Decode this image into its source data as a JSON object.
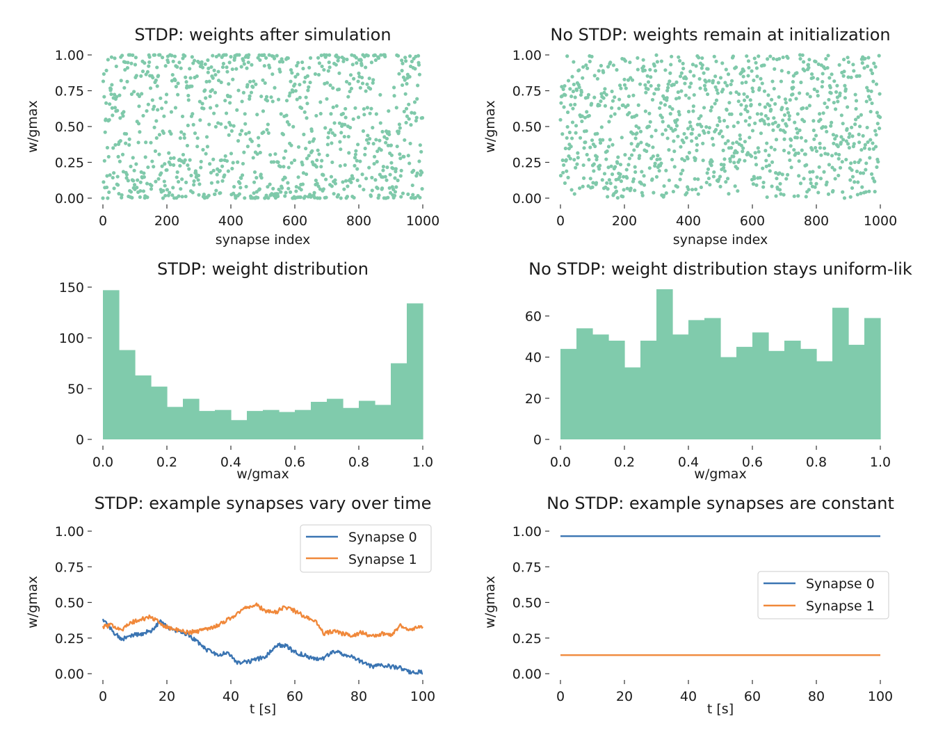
{
  "colors": {
    "scatter": "#7fc9aa",
    "hist": "#80cbac",
    "synapse0": "#3a74b2",
    "synapse1": "#f0883a"
  },
  "chart_data": [
    {
      "id": "stdp-scatter",
      "type": "scatter",
      "title": "STDP: weights after simulation",
      "xlabel": "synapse index",
      "ylabel": "w/gmax",
      "xlim": [
        0,
        1000
      ],
      "ylim": [
        0,
        1
      ],
      "xticks": [
        "0",
        "200",
        "400",
        "600",
        "800",
        "1000"
      ],
      "yticks": [
        "0.00",
        "0.25",
        "0.50",
        "0.75",
        "1.00"
      ],
      "n_points": 1000,
      "distribution": "bimodal (concentrated near 0 and 1)",
      "grid": false
    },
    {
      "id": "nostdp-scatter",
      "type": "scatter",
      "title": "No STDP: weights remain at initialization",
      "xlabel": "synapse index",
      "ylabel": "w/gmax",
      "xlim": [
        0,
        1000
      ],
      "ylim": [
        0,
        1
      ],
      "xticks": [
        "0",
        "200",
        "400",
        "600",
        "800",
        "1000"
      ],
      "yticks": [
        "0.00",
        "0.25",
        "0.50",
        "0.75",
        "1.00"
      ],
      "n_points": 1000,
      "distribution": "uniform",
      "grid": false
    },
    {
      "id": "stdp-hist",
      "type": "bar",
      "title": "STDP: weight distribution",
      "xlabel": "w/gmax",
      "ylabel": "",
      "xlim": [
        0,
        1
      ],
      "ylim": [
        0,
        150
      ],
      "xticks": [
        "0.0",
        "0.2",
        "0.4",
        "0.6",
        "0.8",
        "1.0"
      ],
      "yticks": [
        "0",
        "50",
        "100",
        "150"
      ],
      "bin_edges_start": 0,
      "bin_width": 0.05,
      "values": [
        147,
        88,
        63,
        52,
        32,
        40,
        28,
        29,
        19,
        28,
        29,
        27,
        29,
        37,
        40,
        31,
        38,
        34,
        75,
        134
      ]
    },
    {
      "id": "nostdp-hist",
      "type": "bar",
      "title": "No STDP: weight distribution stays uniform-lik",
      "xlabel": "w/gmax",
      "ylabel": "",
      "xlim": [
        0,
        1
      ],
      "ylim": [
        0,
        72
      ],
      "xticks": [
        "0.0",
        "0.2",
        "0.4",
        "0.6",
        "0.8",
        "1.0"
      ],
      "yticks": [
        "0",
        "20",
        "40",
        "60"
      ],
      "bin_edges_start": 0,
      "bin_width": 0.05,
      "values": [
        44,
        54,
        51,
        48,
        35,
        48,
        73,
        51,
        58,
        59,
        40,
        45,
        52,
        43,
        48,
        44,
        38,
        64,
        46,
        59
      ]
    },
    {
      "id": "stdp-traces",
      "type": "line",
      "title": "STDP: example synapses vary over time",
      "xlabel": "t [s]",
      "ylabel": "w/gmax",
      "xlim": [
        0,
        100
      ],
      "ylim": [
        0,
        1
      ],
      "xticks": [
        "0",
        "20",
        "40",
        "60",
        "80",
        "100"
      ],
      "yticks": [
        "0.00",
        "0.25",
        "0.50",
        "0.75",
        "1.00"
      ],
      "legend_position": "upper-right",
      "series": [
        {
          "name": "Synapse 0",
          "x": [
            0,
            3,
            6,
            9,
            12,
            15,
            18,
            21,
            24,
            27,
            30,
            33,
            36,
            39,
            42,
            45,
            48,
            51,
            54,
            57,
            60,
            63,
            66,
            69,
            72,
            75,
            78,
            81,
            84,
            87,
            90,
            93,
            96,
            100
          ],
          "y": [
            0.38,
            0.3,
            0.24,
            0.27,
            0.28,
            0.3,
            0.37,
            0.31,
            0.3,
            0.27,
            0.21,
            0.16,
            0.13,
            0.15,
            0.08,
            0.08,
            0.1,
            0.12,
            0.2,
            0.2,
            0.15,
            0.13,
            0.1,
            0.11,
            0.16,
            0.14,
            0.12,
            0.08,
            0.05,
            0.06,
            0.05,
            0.04,
            0.01,
            0.01
          ]
        },
        {
          "name": "Synapse 1",
          "x": [
            0,
            3,
            6,
            9,
            12,
            15,
            18,
            21,
            24,
            27,
            30,
            33,
            36,
            39,
            42,
            45,
            48,
            51,
            54,
            57,
            60,
            63,
            66,
            69,
            72,
            75,
            78,
            81,
            84,
            87,
            90,
            93,
            96,
            100
          ],
          "y": [
            0.33,
            0.34,
            0.31,
            0.36,
            0.38,
            0.4,
            0.35,
            0.32,
            0.3,
            0.29,
            0.3,
            0.32,
            0.34,
            0.38,
            0.42,
            0.47,
            0.48,
            0.44,
            0.43,
            0.47,
            0.44,
            0.4,
            0.38,
            0.28,
            0.3,
            0.28,
            0.27,
            0.29,
            0.26,
            0.28,
            0.27,
            0.34,
            0.31,
            0.33
          ]
        }
      ]
    },
    {
      "id": "nostdp-traces",
      "type": "line",
      "title": "No STDP: example synapses are constant",
      "xlabel": "t [s]",
      "ylabel": "w/gmax",
      "xlim": [
        0,
        100
      ],
      "ylim": [
        0,
        1
      ],
      "xticks": [
        "0",
        "20",
        "40",
        "60",
        "80",
        "100"
      ],
      "yticks": [
        "0.00",
        "0.25",
        "0.50",
        "0.75",
        "1.00"
      ],
      "legend_position": "center-right",
      "series": [
        {
          "name": "Synapse 0",
          "x": [
            0,
            100
          ],
          "y": [
            0.965,
            0.965
          ]
        },
        {
          "name": "Synapse 1",
          "x": [
            0,
            100
          ],
          "y": [
            0.13,
            0.13
          ]
        }
      ]
    }
  ]
}
